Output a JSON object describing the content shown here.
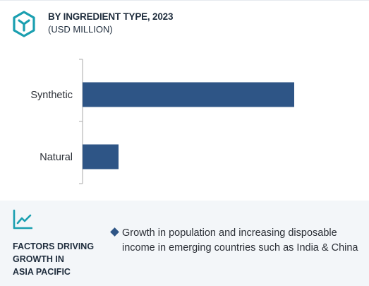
{
  "header": {
    "title": "BY INGREDIENT TYPE, 2023",
    "subtitle": "(USD MILLION)",
    "icon": "hexagon-cube-icon"
  },
  "chart_data": {
    "type": "bar",
    "orientation": "horizontal",
    "categories": [
      "Synthetic",
      "Natural"
    ],
    "values": [
      100,
      17
    ],
    "xlim": [
      0,
      100
    ],
    "value_labels_shown": false,
    "bar_color": "#2e5586",
    "axis_color": "#a9a9a9"
  },
  "factors": {
    "icon": "trend-line-icon",
    "label_lines": [
      "FACTORS DRIVING",
      "GROWTH IN",
      "ASIA PACIFIC"
    ],
    "items": [
      "Growth in population and increasing disposable income in emerging countries such as India & China"
    ],
    "accent_color": "#2e5586"
  }
}
